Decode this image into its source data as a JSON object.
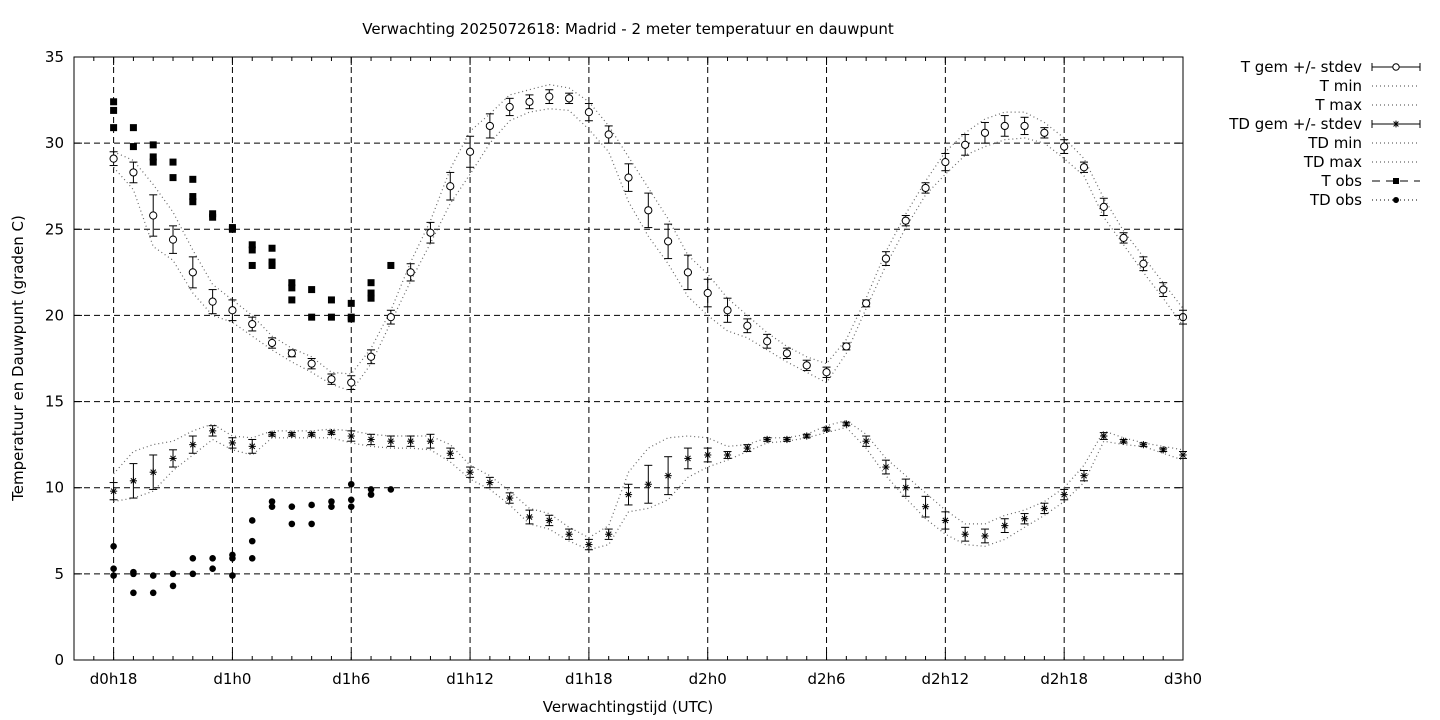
{
  "chart_data": {
    "type": "line",
    "title": "Verwachting 2025072618: Madrid - 2 meter temperatuur en dauwpunt",
    "xlabel": "Verwachtingstijd (UTC)",
    "ylabel": "Temperatuur en Dauwpunt (graden C)",
    "x_unit": "hours since forecast start",
    "xlim": [
      -2,
      54
    ],
    "ylim": [
      0,
      35
    ],
    "grid": true,
    "legend_position": "outside-right",
    "x_ticks": [
      {
        "x": 0,
        "label": "d0h18"
      },
      {
        "x": 6,
        "label": "d1h0"
      },
      {
        "x": 12,
        "label": "d1h6"
      },
      {
        "x": 18,
        "label": "d1h12"
      },
      {
        "x": 24,
        "label": "d1h18"
      },
      {
        "x": 30,
        "label": "d2h0"
      },
      {
        "x": 36,
        "label": "d2h6"
      },
      {
        "x": 42,
        "label": "d2h12"
      },
      {
        "x": 48,
        "label": "d2h18"
      },
      {
        "x": 54,
        "label": "d3h0"
      }
    ],
    "y_ticks": [
      0,
      5,
      10,
      15,
      20,
      25,
      30,
      35
    ],
    "legend": [
      {
        "key": "t_mean",
        "label": "T gem +/- stdev"
      },
      {
        "key": "t_min",
        "label": "T min"
      },
      {
        "key": "t_max",
        "label": "T max"
      },
      {
        "key": "td_mean",
        "label": "TD gem +/- stdev"
      },
      {
        "key": "td_min",
        "label": "TD min"
      },
      {
        "key": "td_max",
        "label": "TD max"
      },
      {
        "key": "t_obs",
        "label": "T obs"
      },
      {
        "key": "td_obs",
        "label": "TD obs"
      }
    ],
    "forecast_x": [
      0,
      1,
      2,
      3,
      4,
      5,
      6,
      7,
      8,
      9,
      10,
      11,
      12,
      13,
      14,
      15,
      16,
      17,
      18,
      19,
      20,
      21,
      22,
      23,
      24,
      25,
      26,
      27,
      28,
      29,
      30,
      31,
      32,
      33,
      34,
      35,
      36,
      37,
      38,
      39,
      40,
      41,
      42,
      43,
      44,
      45,
      46,
      47,
      48,
      49,
      50,
      51,
      52,
      53,
      54
    ],
    "series": [
      {
        "name": "T gem +/- stdev",
        "values": [
          29.1,
          28.3,
          25.8,
          24.4,
          22.5,
          20.8,
          20.3,
          19.5,
          18.4,
          17.8,
          17.2,
          16.3,
          16.1,
          17.6,
          19.9,
          22.5,
          24.8,
          27.5,
          29.5,
          31.0,
          32.1,
          32.4,
          32.7,
          32.6,
          31.8,
          30.5,
          28.0,
          26.1,
          24.3,
          22.5,
          21.3,
          20.3,
          19.4,
          18.5,
          17.8,
          17.1,
          16.7,
          18.2,
          20.7,
          23.3,
          25.5,
          27.4,
          28.9,
          29.9,
          30.6,
          31.0,
          31.0,
          30.6,
          29.8,
          28.6,
          26.3,
          24.5,
          23.0,
          21.5,
          19.9
        ],
        "stdev": [
          0.4,
          0.6,
          1.2,
          0.8,
          0.9,
          0.7,
          0.6,
          0.4,
          0.3,
          0.2,
          0.3,
          0.3,
          0.4,
          0.4,
          0.4,
          0.5,
          0.6,
          0.8,
          0.9,
          0.7,
          0.5,
          0.4,
          0.4,
          0.3,
          0.5,
          0.5,
          0.8,
          1.0,
          1.0,
          1.0,
          0.8,
          0.7,
          0.4,
          0.4,
          0.3,
          0.3,
          0.3,
          0.2,
          0.2,
          0.4,
          0.3,
          0.3,
          0.5,
          0.6,
          0.6,
          0.6,
          0.5,
          0.3,
          0.4,
          0.3,
          0.5,
          0.3,
          0.4,
          0.4,
          0.4
        ]
      },
      {
        "name": "T min",
        "values": [
          28.6,
          27.3,
          24.0,
          23.2,
          21.3,
          20.0,
          19.6,
          18.8,
          18.0,
          17.3,
          16.7,
          16.0,
          15.6,
          17.2,
          19.6,
          22.0,
          24.2,
          26.5,
          28.2,
          30.0,
          31.3,
          31.8,
          32.0,
          31.9,
          30.8,
          29.5,
          26.6,
          24.6,
          23.0,
          21.1,
          20.0,
          19.1,
          18.7,
          18.0,
          17.3,
          16.7,
          16.1,
          17.8,
          20.4,
          22.9,
          25.1,
          27.0,
          28.2,
          29.3,
          29.8,
          30.2,
          30.3,
          30.0,
          29.1,
          28.1,
          25.7,
          24.1,
          22.5,
          21.0,
          19.4
        ]
      },
      {
        "name": "T max",
        "values": [
          29.5,
          29.0,
          27.6,
          26.0,
          23.8,
          21.8,
          20.9,
          20.0,
          18.8,
          18.1,
          17.6,
          16.7,
          16.6,
          18.1,
          20.3,
          23.1,
          25.5,
          28.5,
          30.7,
          31.7,
          32.8,
          33.1,
          33.4,
          33.2,
          32.4,
          31.0,
          29.2,
          27.4,
          25.6,
          23.5,
          22.4,
          21.0,
          20.0,
          19.0,
          18.2,
          17.6,
          17.2,
          18.6,
          21.0,
          23.7,
          25.9,
          27.8,
          29.5,
          30.6,
          31.4,
          31.8,
          31.8,
          31.2,
          30.3,
          29.1,
          26.8,
          24.9,
          23.4,
          21.9,
          20.4
        ]
      },
      {
        "name": "TD gem +/- stdev",
        "values": [
          9.8,
          10.4,
          10.9,
          11.7,
          12.5,
          13.3,
          12.6,
          12.4,
          13.1,
          13.1,
          13.1,
          13.2,
          13.0,
          12.8,
          12.7,
          12.7,
          12.7,
          12.0,
          10.9,
          10.3,
          9.4,
          8.3,
          8.1,
          7.3,
          6.7,
          7.3,
          9.6,
          10.2,
          10.7,
          11.7,
          11.9,
          11.9,
          12.3,
          12.8,
          12.8,
          13.0,
          13.4,
          13.7,
          12.7,
          11.2,
          10.0,
          8.9,
          8.1,
          7.3,
          7.2,
          7.8,
          8.2,
          8.8,
          9.6,
          10.7,
          13.0,
          12.7,
          12.5,
          12.2,
          11.9
        ],
        "stdev": [
          0.5,
          1.0,
          1.0,
          0.5,
          0.5,
          0.3,
          0.3,
          0.4,
          0.1,
          0.1,
          0.1,
          0.1,
          0.3,
          0.3,
          0.3,
          0.3,
          0.4,
          0.3,
          0.3,
          0.3,
          0.3,
          0.4,
          0.3,
          0.3,
          0.3,
          0.3,
          0.6,
          1.1,
          1.1,
          0.6,
          0.4,
          0.2,
          0.2,
          0.1,
          0.1,
          0.1,
          0.1,
          0.1,
          0.3,
          0.4,
          0.5,
          0.6,
          0.5,
          0.4,
          0.4,
          0.4,
          0.3,
          0.3,
          0.3,
          0.3,
          0.2,
          0.1,
          0.1,
          0.1,
          0.2
        ]
      },
      {
        "name": "TD min",
        "values": [
          9.2,
          9.4,
          9.8,
          11.0,
          11.9,
          12.8,
          12.2,
          11.9,
          12.9,
          12.9,
          12.9,
          12.9,
          12.6,
          12.4,
          12.3,
          12.3,
          12.2,
          11.5,
          10.5,
          9.9,
          9.0,
          7.9,
          7.6,
          6.9,
          6.4,
          6.7,
          8.6,
          8.8,
          9.3,
          10.6,
          11.2,
          11.6,
          12.1,
          12.6,
          12.7,
          12.9,
          13.2,
          13.5,
          12.3,
          10.7,
          9.4,
          8.2,
          7.3,
          6.7,
          6.6,
          7.0,
          7.7,
          8.4,
          9.2,
          10.3,
          12.7,
          12.5,
          12.4,
          12.0,
          11.6
        ]
      },
      {
        "name": "TD max",
        "values": [
          10.8,
          12.1,
          12.5,
          12.7,
          13.3,
          13.7,
          13.0,
          12.9,
          13.3,
          13.3,
          13.3,
          13.4,
          13.3,
          13.1,
          13.0,
          13.0,
          13.0,
          12.5,
          11.3,
          10.7,
          9.8,
          8.8,
          8.5,
          7.7,
          7.1,
          7.8,
          10.9,
          12.3,
          12.9,
          13.0,
          12.9,
          12.4,
          12.5,
          12.9,
          12.9,
          13.1,
          13.6,
          13.9,
          13.1,
          11.7,
          10.7,
          9.7,
          8.7,
          7.9,
          7.9,
          8.4,
          8.7,
          9.2,
          10.0,
          11.3,
          13.3,
          12.9,
          12.6,
          12.4,
          12.2
        ]
      },
      {
        "name": "T obs",
        "points": [
          [
            0,
            32.4
          ],
          [
            0,
            31.9
          ],
          [
            0,
            30.9
          ],
          [
            1,
            30.9
          ],
          [
            1,
            29.8
          ],
          [
            2,
            29.9
          ],
          [
            2,
            29.2
          ],
          [
            2,
            28.9
          ],
          [
            3,
            28.9
          ],
          [
            3,
            28.0
          ],
          [
            4,
            27.9
          ],
          [
            4,
            26.9
          ],
          [
            4,
            26.6
          ],
          [
            5,
            25.9
          ],
          [
            5,
            25.7
          ],
          [
            6,
            25.1
          ],
          [
            6,
            25.0
          ],
          [
            7,
            24.1
          ],
          [
            7,
            23.8
          ],
          [
            7,
            22.9
          ],
          [
            8,
            23.9
          ],
          [
            8,
            23.1
          ],
          [
            8,
            22.9
          ],
          [
            9,
            21.9
          ],
          [
            9,
            21.6
          ],
          [
            9,
            20.9
          ],
          [
            10,
            21.5
          ],
          [
            10,
            19.9
          ],
          [
            11,
            20.9
          ],
          [
            11,
            19.9
          ],
          [
            12,
            20.7
          ],
          [
            12,
            19.9
          ],
          [
            12,
            19.8
          ],
          [
            13,
            21.9
          ],
          [
            13,
            21.3
          ],
          [
            13,
            21.0
          ],
          [
            14,
            22.9
          ]
        ]
      },
      {
        "name": "TD obs",
        "points": [
          [
            0,
            6.6
          ],
          [
            0,
            5.3
          ],
          [
            0,
            4.9
          ],
          [
            1,
            5.0
          ],
          [
            1,
            5.1
          ],
          [
            1,
            3.9
          ],
          [
            2,
            4.9
          ],
          [
            2,
            3.9
          ],
          [
            3,
            5.0
          ],
          [
            3,
            4.3
          ],
          [
            4,
            5.9
          ],
          [
            4,
            5.0
          ],
          [
            5,
            5.9
          ],
          [
            5,
            5.3
          ],
          [
            6,
            6.1
          ],
          [
            6,
            5.9
          ],
          [
            6,
            4.9
          ],
          [
            7,
            8.1
          ],
          [
            7,
            6.9
          ],
          [
            7,
            5.9
          ],
          [
            8,
            9.2
          ],
          [
            8,
            8.9
          ],
          [
            9,
            8.9
          ],
          [
            9,
            7.9
          ],
          [
            10,
            9.0
          ],
          [
            10,
            7.9
          ],
          [
            11,
            9.2
          ],
          [
            11,
            8.9
          ],
          [
            12,
            10.2
          ],
          [
            12,
            9.3
          ],
          [
            12,
            8.9
          ],
          [
            13,
            9.9
          ],
          [
            13,
            9.6
          ],
          [
            14,
            9.9
          ]
        ]
      }
    ]
  }
}
